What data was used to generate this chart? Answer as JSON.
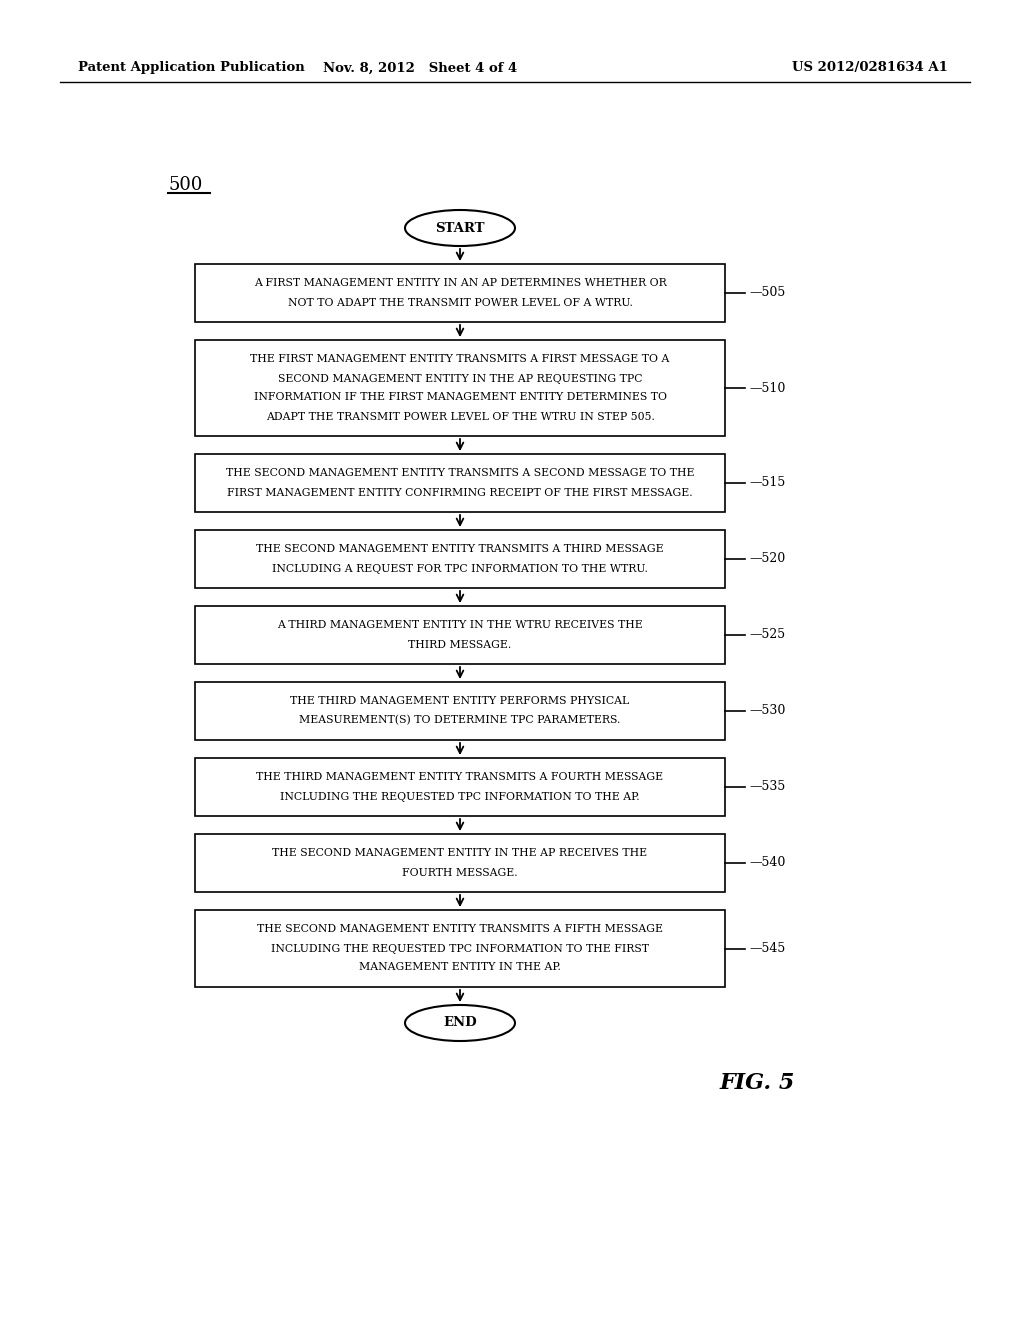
{
  "header_left": "Patent Application Publication",
  "header_mid": "Nov. 8, 2012   Sheet 4 of 4",
  "header_right": "US 2012/0281634 A1",
  "diagram_label": "500",
  "fig_label": "FIG. 5",
  "start_label": "START",
  "end_label": "END",
  "steps": [
    {
      "id": "505",
      "lines": [
        "A FIRST MANAGEMENT ENTITY IN AN AP DETERMINES WHETHER OR",
        "NOT TO ADAPT THE TRANSMIT POWER LEVEL OF A WTRU."
      ]
    },
    {
      "id": "510",
      "lines": [
        "THE FIRST MANAGEMENT ENTITY TRANSMITS A FIRST MESSAGE TO A",
        "SECOND MANAGEMENT ENTITY IN THE AP REQUESTING TPC",
        "INFORMATION IF THE FIRST MANAGEMENT ENTITY DETERMINES TO",
        "ADAPT THE TRANSMIT POWER LEVEL OF THE WTRU IN STEP 505."
      ]
    },
    {
      "id": "515",
      "lines": [
        "THE SECOND MANAGEMENT ENTITY TRANSMITS A SECOND MESSAGE TO THE",
        "FIRST MANAGEMENT ENTITY CONFIRMING RECEIPT OF THE FIRST MESSAGE."
      ]
    },
    {
      "id": "520",
      "lines": [
        "THE SECOND MANAGEMENT ENTITY TRANSMITS A THIRD MESSAGE",
        "INCLUDING A REQUEST FOR TPC INFORMATION TO THE WTRU."
      ]
    },
    {
      "id": "525",
      "lines": [
        "A THIRD MANAGEMENT ENTITY IN THE WTRU RECEIVES THE",
        "THIRD MESSAGE."
      ]
    },
    {
      "id": "530",
      "lines": [
        "THE THIRD MANAGEMENT ENTITY PERFORMS PHYSICAL",
        "MEASUREMENT(S) TO DETERMINE TPC PARAMETERS."
      ]
    },
    {
      "id": "535",
      "lines": [
        "THE THIRD MANAGEMENT ENTITY TRANSMITS A FOURTH MESSAGE",
        "INCLUDING THE REQUESTED TPC INFORMATION TO THE AP."
      ]
    },
    {
      "id": "540",
      "lines": [
        "THE SECOND MANAGEMENT ENTITY IN THE AP RECEIVES THE",
        "FOURTH MESSAGE."
      ]
    },
    {
      "id": "545",
      "lines": [
        "THE SECOND MANAGEMENT ENTITY TRANSMITS A FIFTH MESSAGE",
        "INCLUDING THE REQUESTED TPC INFORMATION TO THE FIRST",
        "MANAGEMENT ENTITY IN THE AP."
      ]
    }
  ],
  "bg_color": "#ffffff",
  "box_edge_color": "#000000",
  "text_color": "#000000",
  "arrow_color": "#000000",
  "header_font_size": 9.5,
  "step_font_size": 7.8,
  "label_font_size": 9,
  "diagram_label_font_size": 13
}
